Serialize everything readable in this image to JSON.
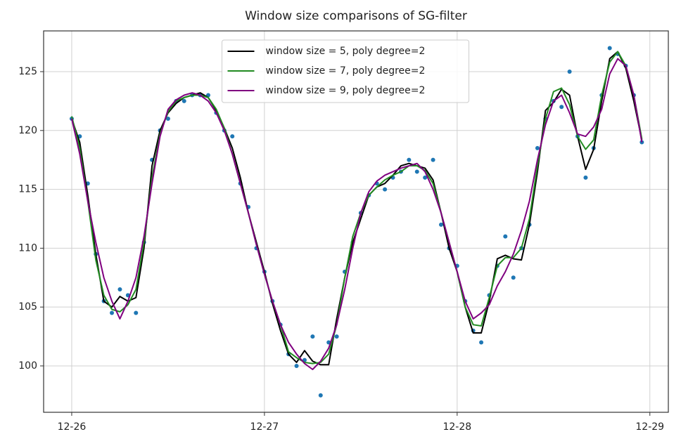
{
  "chart_data": {
    "type": "line",
    "title": "Window size comparisons of SG-filter",
    "x": [
      0,
      1,
      2,
      3,
      4,
      5,
      6,
      7,
      8,
      9,
      10,
      11,
      12,
      13,
      14,
      15,
      16,
      17,
      18,
      19,
      20,
      21,
      22,
      23,
      24,
      25,
      26,
      27,
      28,
      29,
      30,
      31,
      32,
      33,
      34,
      35,
      36,
      37,
      38,
      39,
      40,
      41,
      42,
      43,
      44,
      45,
      46,
      47,
      48,
      49,
      50,
      51,
      52,
      53,
      54,
      55,
      56,
      57,
      58,
      59,
      60,
      61,
      62,
      63,
      64,
      65,
      66,
      67,
      68,
      69,
      70,
      71
    ],
    "xlim": [
      -3.5,
      74.3
    ],
    "xticks": [
      {
        "value": 0,
        "label": "12-26"
      },
      {
        "value": 24,
        "label": "12-27"
      },
      {
        "value": 48,
        "label": "12-28"
      },
      {
        "value": 72,
        "label": "12-29"
      }
    ],
    "ylim": [
      96.06,
      128.46
    ],
    "yticks": [
      100,
      105,
      110,
      115,
      120,
      125
    ],
    "grid": true,
    "legend": "upper center",
    "scatter": {
      "color": "#1f77b4",
      "values": [
        121,
        119.5,
        115.5,
        109.5,
        105.5,
        104.5,
        106.5,
        106,
        104.5,
        110.5,
        117.5,
        120,
        121,
        122.5,
        122.5,
        123,
        123,
        123,
        121.5,
        120,
        119.5,
        115.5,
        113.5,
        110,
        108,
        105.5,
        103.5,
        101,
        100,
        100.5,
        102.5,
        97.5,
        102,
        102.5,
        108,
        110.5,
        113,
        114.5,
        115.5,
        115,
        116,
        116.5,
        117.5,
        116.5,
        116,
        117.5,
        112,
        110,
        108.5,
        105.5,
        103,
        102,
        106,
        108.5,
        111,
        107.5,
        110,
        112,
        118.5,
        121,
        122.5,
        122,
        125,
        119.5,
        116,
        118.5,
        123,
        127,
        126.5,
        125.5,
        123,
        119
      ]
    },
    "series": [
      {
        "name": "window size = 5, poly degree=2",
        "color": "#000000",
        "values": [
          121,
          119,
          114.5,
          109.5,
          105.5,
          105,
          105.9,
          105.5,
          105.8,
          110,
          117,
          120,
          121.5,
          122.3,
          122.8,
          123,
          123.2,
          122.8,
          121.7,
          120.2,
          118.5,
          116,
          113,
          110.5,
          108,
          105.3,
          103,
          101,
          100.3,
          101.3,
          100.4,
          100.1,
          100.1,
          104,
          107.5,
          110.5,
          112.5,
          114.5,
          115.2,
          115.5,
          116.2,
          117,
          117.2,
          117,
          116.8,
          115.8,
          113,
          110,
          108,
          105,
          102.8,
          102.8,
          105.5,
          109.1,
          109.4,
          109.1,
          109,
          112,
          116.5,
          121.7,
          122.4,
          123.5,
          123,
          119.5,
          116.7,
          118.4,
          122.5,
          126.1,
          126.7,
          125.3,
          122.5,
          119.2
        ]
      },
      {
        "name": "window size = 7, poly degree=2",
        "color": "#228b22",
        "values": [
          121.2,
          118.5,
          114,
          109,
          106,
          104.8,
          104.6,
          105.2,
          106.5,
          110.5,
          116,
          119.7,
          121.6,
          122.5,
          122.8,
          123,
          123,
          122.8,
          121.8,
          120.2,
          118,
          115.5,
          113,
          110.3,
          107.8,
          105.5,
          103.5,
          101.2,
          100.7,
          100.3,
          100.2,
          100.3,
          101,
          103.5,
          107.5,
          111,
          113,
          114.5,
          115.2,
          115.8,
          116.2,
          116.5,
          117,
          117,
          116.6,
          115.5,
          113,
          110.5,
          108,
          105,
          103.5,
          103.4,
          105.8,
          108.5,
          109.2,
          109.2,
          110,
          112.5,
          117,
          121,
          123.3,
          123.6,
          122.2,
          119.5,
          118.4,
          119.2,
          123,
          125.8,
          126.7,
          125.5,
          123,
          119.3
        ]
      },
      {
        "name": "window size = 9, poly degree=2",
        "color": "#800080",
        "values": [
          121,
          118,
          114,
          110.5,
          107.5,
          105.5,
          104,
          105.5,
          107.5,
          111,
          115.5,
          119.5,
          121.8,
          122.6,
          123,
          123.2,
          123,
          122.5,
          121.5,
          120,
          118,
          115.5,
          113,
          110.3,
          107.8,
          105.5,
          103.5,
          102,
          101,
          100.2,
          99.7,
          100.4,
          101.5,
          103.5,
          106.5,
          110,
          113,
          114.8,
          115.7,
          116.2,
          116.5,
          116.8,
          117,
          117.2,
          116.5,
          115,
          113,
          110.5,
          108,
          105.5,
          104,
          104.5,
          105.2,
          106.8,
          108,
          109.5,
          111.5,
          114,
          117.5,
          120.5,
          122.5,
          123,
          121.5,
          119.7,
          119.5,
          120.3,
          121.8,
          124.8,
          126.1,
          125.5,
          123,
          119
        ]
      }
    ]
  }
}
